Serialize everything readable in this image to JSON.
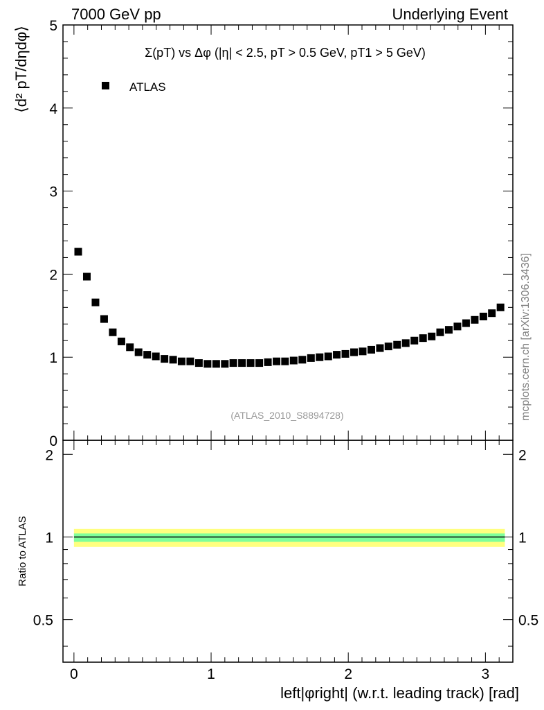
{
  "header": {
    "left": "7000 GeV pp",
    "right": "Underlying Event"
  },
  "side_label": "mcplots.cern.ch [arXiv:1306.3436]",
  "chart_data": [
    {
      "type": "scatter",
      "title": "Σ(pT) vs Δφ (|η| < 2.5, pT > 0.5 GeV, pT1 > 5 GeV)",
      "ylabel": "⟨d² pT/dηdφ⟩",
      "xlabel": "",
      "xlim": [
        -0.08,
        3.2
      ],
      "ylim": [
        0,
        5
      ],
      "y_ticks": [
        "0",
        "1",
        "2",
        "3",
        "4",
        "5"
      ],
      "legend": {
        "placement": "top-left",
        "entries": [
          "ATLAS"
        ]
      },
      "analysis_label": "(ATLAS_2010_S8894728)",
      "series": [
        {
          "name": "ATLAS",
          "marker": "square",
          "color": "#000000",
          "x": [
            0.031,
            0.094,
            0.157,
            0.22,
            0.283,
            0.346,
            0.408,
            0.471,
            0.534,
            0.597,
            0.66,
            0.723,
            0.785,
            0.848,
            0.911,
            0.974,
            1.037,
            1.1,
            1.162,
            1.225,
            1.288,
            1.351,
            1.414,
            1.477,
            1.539,
            1.602,
            1.665,
            1.728,
            1.791,
            1.854,
            1.916,
            1.979,
            2.042,
            2.105,
            2.168,
            2.231,
            2.293,
            2.356,
            2.419,
            2.482,
            2.545,
            2.608,
            2.67,
            2.733,
            2.796,
            2.859,
            2.922,
            2.985,
            3.047,
            3.11
          ],
          "y": [
            2.27,
            1.97,
            1.66,
            1.46,
            1.3,
            1.19,
            1.12,
            1.06,
            1.03,
            1.01,
            0.98,
            0.97,
            0.95,
            0.95,
            0.93,
            0.92,
            0.92,
            0.92,
            0.93,
            0.93,
            0.93,
            0.93,
            0.94,
            0.95,
            0.95,
            0.96,
            0.97,
            0.99,
            1.0,
            1.01,
            1.03,
            1.04,
            1.06,
            1.07,
            1.09,
            1.11,
            1.13,
            1.15,
            1.17,
            1.2,
            1.23,
            1.25,
            1.3,
            1.33,
            1.37,
            1.41,
            1.45,
            1.49,
            1.53,
            1.6
          ]
        }
      ]
    },
    {
      "type": "line",
      "title": "",
      "ylabel": "Ratio to ATLAS",
      "xlabel": "left|φright| (w.r.t. leading track) [rad]",
      "xlim": [
        -0.08,
        3.2
      ],
      "ylim": [
        0.35,
        2.25
      ],
      "x_ticks": [
        "0",
        "1",
        "2",
        "3"
      ],
      "y_ticks": [
        "0.5",
        "1",
        "2"
      ],
      "series": [
        {
          "name": "ATLAS",
          "x": [
            0,
            3.142
          ],
          "values": [
            1,
            1
          ],
          "color": "#000000"
        }
      ],
      "bands": [
        {
          "level": "outer",
          "color": "#ffff80",
          "lower": 0.92,
          "upper": 1.07
        },
        {
          "level": "inner",
          "color": "#7fff9a",
          "lower": 0.96,
          "upper": 1.03
        }
      ]
    }
  ]
}
